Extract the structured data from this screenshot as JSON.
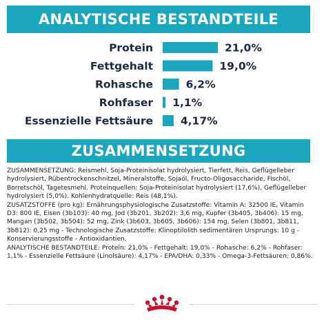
{
  "banner1": {
    "title": "ANALYTISCHE BESTANDTEILE"
  },
  "banner2": {
    "title": "ZUSAMMENSETZUNG"
  },
  "colors": {
    "accent": "#1aa6bd",
    "text": "#1d2a44",
    "crown": "#c8102e"
  },
  "chart_data": {
    "type": "bar",
    "orientation": "horizontal",
    "categories": [
      "Protein",
      "Fettgehalt",
      "Rohasche",
      "Rohfaser",
      "Essenzielle Fettsäure"
    ],
    "values": [
      21.0,
      19.0,
      6.2,
      1.1,
      4.17
    ],
    "value_labels": [
      "21,0%",
      "19,0%",
      "6,2%",
      "1,1%",
      "4,17%"
    ],
    "unit": "%",
    "xlim": [
      0,
      21.0
    ],
    "grid": false,
    "legend": "none"
  },
  "composition": {
    "paragraphs": [
      "ZUSAMMENSETZUNG: Reismehl, Soja-Proteinisolat hydrolysiert, Tierfett, Reis, Geflügelleber hydrolysiert, Rübentrockenschnitzel, Mineralstoffe, Sojaöl, Fructo-Oligosaccharide, Fischöl, Borretschöl, Tagetesmehl. Proteinquellen: Soja-Proteinisolat hydrolysiert (17,6%), Geflügelleber hydrolysiert (5,0%). Kohlenhydratquelle: Reis (48,1%).",
      "ZUSATZSTOFFE (pro kg): Ernährungsphysiologische Zusatzstoffe: Vitamin A: 32500 IE, Vitamin D3: 800 IE, Eisen (3b103): 40 mg, Jod (3b201, 3b202): 3,6 mg, Kupfer (3b405, 3b406): 15 mg, Mangan (3b502, 3b504): 52 mg, Zink (3b603, 3b605, 3b606): 154 mg, Selen (3b801, 3b811, 3b812): 0,25 mg - Technologische Zusatzstoffe: Klinoptilolith sedimentären Ursprungs: 10 g - Konservierungsstoffe - Antioxidantien.",
      "ANALYTISCHE BESTANDTEILE: Protein: 21,0% - Fettgehalt: 19,0% - Rohasche: 6,2% - Rohfaser: 1,1% - Essenzielle Fettsäure (Linolsäure): 4,17% - EPA/DHA: 0,33% - Omega-3-Fettsäuren: 0,86%."
    ]
  },
  "footer": {
    "logo": "crown-logo"
  }
}
